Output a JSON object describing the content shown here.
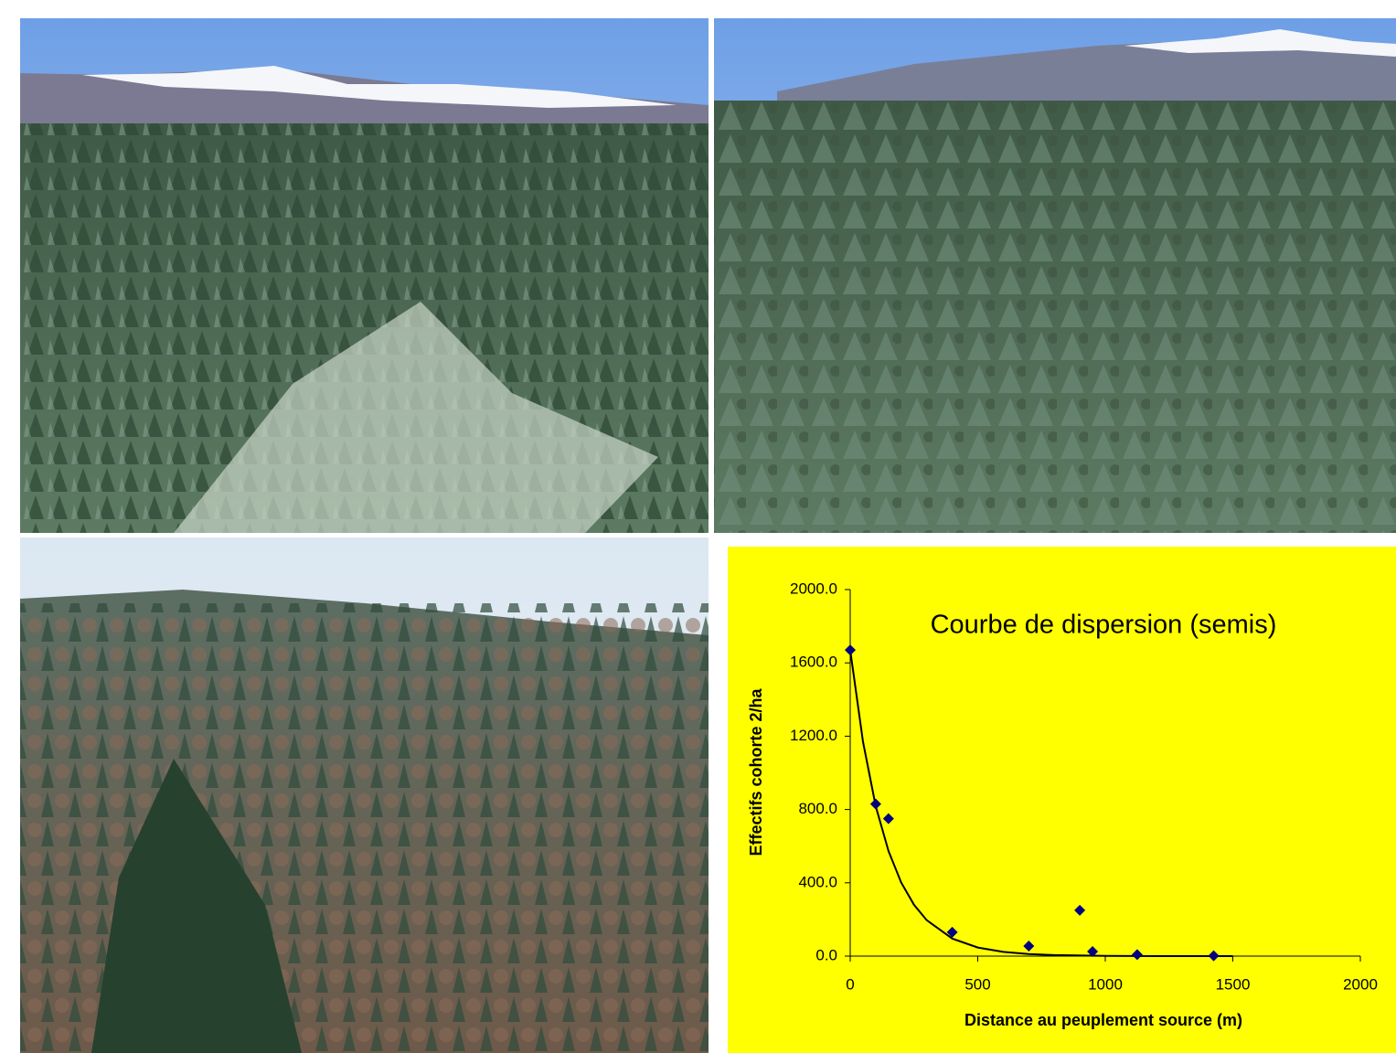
{
  "chart_data": {
    "type": "scatter",
    "title": "Courbe de dispersion (semis)",
    "x_label": "Distance au peuplement source (m)",
    "y_label": "Effectifs cohorte 2/ha",
    "background": "#ffff00",
    "series": [
      {
        "color": "#000080",
        "x": [
          0,
          100,
          150,
          400,
          700,
          900,
          950,
          1125,
          1425
        ],
        "values": [
          1670,
          830,
          750,
          130,
          55,
          250,
          25,
          8,
          2
        ]
      }
    ],
    "trendline": {
      "color": "#000000",
      "x": [
        0,
        50,
        100,
        150,
        200,
        250,
        300,
        400,
        500,
        600,
        700,
        800,
        1000,
        1200,
        1500
      ],
      "values": [
        1670,
        1169,
        818,
        573,
        401,
        280,
        196,
        96,
        47,
        23,
        11,
        5.5,
        1.3,
        0.2,
        0
      ]
    },
    "xlim": [
      0,
      2000
    ],
    "xticks": [
      0,
      500,
      1000,
      1500,
      2000
    ],
    "ylim": [
      0,
      2000
    ],
    "yticks": [
      {
        "value": 0,
        "label": "0.0"
      },
      {
        "value": 400,
        "label": "400.0"
      },
      {
        "value": 800,
        "label": "800.0"
      },
      {
        "value": 1200,
        "label": "1200.0"
      },
      {
        "value": 1600,
        "label": "1600.0"
      },
      {
        "value": 2000,
        "label": "2000.0"
      }
    ]
  }
}
